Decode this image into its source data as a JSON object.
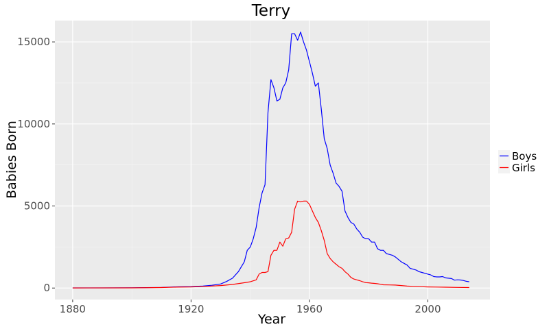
{
  "chart_data": {
    "type": "line",
    "title": "Terry",
    "xlabel": "Year",
    "ylabel": "Babies Born",
    "xlim": [
      1874,
      2021
    ],
    "ylim": [
      -700,
      16300
    ],
    "x_ticks": [
      {
        "value": 1880,
        "label": "1880"
      },
      {
        "value": 1920,
        "label": "1920"
      },
      {
        "value": 1960,
        "label": "1960"
      },
      {
        "value": 2000,
        "label": "2000"
      }
    ],
    "y_ticks": [
      {
        "value": 0,
        "label": "0"
      },
      {
        "value": 5000,
        "label": "5000"
      },
      {
        "value": 10000,
        "label": "10000"
      },
      {
        "value": 15000,
        "label": "15000"
      }
    ],
    "grid": true,
    "legend_position": "right",
    "series": [
      {
        "name": "Boys",
        "color": "#0000ff",
        "points": [
          [
            1880,
            10
          ],
          [
            1890,
            10
          ],
          [
            1900,
            15
          ],
          [
            1910,
            40
          ],
          [
            1913,
            60
          ],
          [
            1916,
            80
          ],
          [
            1920,
            90
          ],
          [
            1924,
            120
          ],
          [
            1927,
            170
          ],
          [
            1930,
            250
          ],
          [
            1932,
            400
          ],
          [
            1934,
            600
          ],
          [
            1936,
            1000
          ],
          [
            1938,
            1600
          ],
          [
            1939,
            2300
          ],
          [
            1940,
            2500
          ],
          [
            1941,
            3000
          ],
          [
            1942,
            3700
          ],
          [
            1943,
            4900
          ],
          [
            1944,
            5800
          ],
          [
            1945,
            6300
          ],
          [
            1946,
            10700
          ],
          [
            1947,
            12700
          ],
          [
            1948,
            12200
          ],
          [
            1949,
            11400
          ],
          [
            1950,
            11500
          ],
          [
            1951,
            12200
          ],
          [
            1952,
            12500
          ],
          [
            1953,
            13300
          ],
          [
            1954,
            15500
          ],
          [
            1955,
            15500
          ],
          [
            1956,
            15100
          ],
          [
            1957,
            15600
          ],
          [
            1958,
            15000
          ],
          [
            1959,
            14500
          ],
          [
            1960,
            13800
          ],
          [
            1961,
            13100
          ],
          [
            1962,
            12300
          ],
          [
            1963,
            12500
          ],
          [
            1964,
            10900
          ],
          [
            1965,
            9100
          ],
          [
            1966,
            8500
          ],
          [
            1967,
            7500
          ],
          [
            1968,
            7000
          ],
          [
            1969,
            6400
          ],
          [
            1970,
            6200
          ],
          [
            1971,
            5900
          ],
          [
            1972,
            4700
          ],
          [
            1973,
            4300
          ],
          [
            1974,
            4000
          ],
          [
            1975,
            3900
          ],
          [
            1976,
            3600
          ],
          [
            1977,
            3400
          ],
          [
            1978,
            3100
          ],
          [
            1979,
            3000
          ],
          [
            1980,
            3000
          ],
          [
            1981,
            2800
          ],
          [
            1982,
            2800
          ],
          [
            1983,
            2400
          ],
          [
            1984,
            2300
          ],
          [
            1985,
            2300
          ],
          [
            1986,
            2100
          ],
          [
            1987,
            2050
          ],
          [
            1988,
            2000
          ],
          [
            1989,
            1900
          ],
          [
            1990,
            1750
          ],
          [
            1991,
            1600
          ],
          [
            1992,
            1500
          ],
          [
            1993,
            1400
          ],
          [
            1994,
            1200
          ],
          [
            1995,
            1150
          ],
          [
            1996,
            1100
          ],
          [
            1997,
            1000
          ],
          [
            1998,
            950
          ],
          [
            1999,
            900
          ],
          [
            2000,
            850
          ],
          [
            2001,
            800
          ],
          [
            2002,
            700
          ],
          [
            2003,
            680
          ],
          [
            2004,
            680
          ],
          [
            2005,
            700
          ],
          [
            2006,
            620
          ],
          [
            2007,
            600
          ],
          [
            2008,
            580
          ],
          [
            2009,
            480
          ],
          [
            2010,
            500
          ],
          [
            2011,
            490
          ],
          [
            2012,
            460
          ],
          [
            2013,
            410
          ],
          [
            2014,
            380
          ]
        ]
      },
      {
        "name": "Girls",
        "color": "#ff0000",
        "points": [
          [
            1880,
            5
          ],
          [
            1900,
            10
          ],
          [
            1910,
            30
          ],
          [
            1915,
            55
          ],
          [
            1920,
            70
          ],
          [
            1925,
            100
          ],
          [
            1930,
            150
          ],
          [
            1934,
            220
          ],
          [
            1937,
            300
          ],
          [
            1940,
            380
          ],
          [
            1942,
            500
          ],
          [
            1943,
            850
          ],
          [
            1944,
            950
          ],
          [
            1945,
            950
          ],
          [
            1946,
            1000
          ],
          [
            1947,
            2000
          ],
          [
            1948,
            2300
          ],
          [
            1949,
            2300
          ],
          [
            1950,
            2800
          ],
          [
            1951,
            2550
          ],
          [
            1952,
            3000
          ],
          [
            1953,
            3050
          ],
          [
            1954,
            3400
          ],
          [
            1955,
            4800
          ],
          [
            1956,
            5300
          ],
          [
            1957,
            5250
          ],
          [
            1958,
            5300
          ],
          [
            1959,
            5300
          ],
          [
            1960,
            5100
          ],
          [
            1961,
            4700
          ],
          [
            1962,
            4300
          ],
          [
            1963,
            4000
          ],
          [
            1964,
            3500
          ],
          [
            1965,
            2900
          ],
          [
            1966,
            2100
          ],
          [
            1967,
            1800
          ],
          [
            1968,
            1600
          ],
          [
            1969,
            1450
          ],
          [
            1970,
            1300
          ],
          [
            1971,
            1200
          ],
          [
            1972,
            1000
          ],
          [
            1973,
            850
          ],
          [
            1974,
            650
          ],
          [
            1975,
            550
          ],
          [
            1976,
            500
          ],
          [
            1977,
            450
          ],
          [
            1978,
            380
          ],
          [
            1979,
            330
          ],
          [
            1980,
            320
          ],
          [
            1981,
            300
          ],
          [
            1982,
            280
          ],
          [
            1983,
            260
          ],
          [
            1984,
            230
          ],
          [
            1985,
            200
          ],
          [
            1987,
            190
          ],
          [
            1989,
            180
          ],
          [
            1991,
            150
          ],
          [
            1993,
            120
          ],
          [
            1995,
            100
          ],
          [
            1998,
            80
          ],
          [
            2000,
            70
          ],
          [
            2003,
            60
          ],
          [
            2006,
            50
          ],
          [
            2010,
            40
          ],
          [
            2014,
            30
          ]
        ]
      }
    ]
  }
}
